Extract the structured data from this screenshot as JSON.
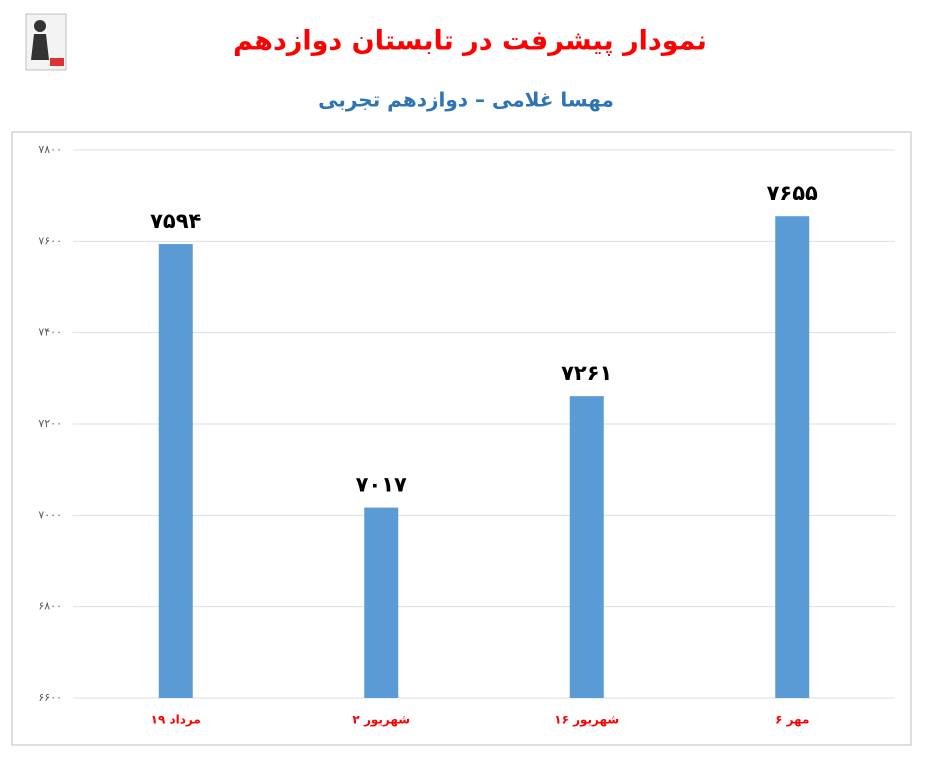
{
  "chart_data": {
    "type": "bar",
    "title": "نمودار پیشرفت در تابستان دوازدهم",
    "subtitle": "مهسا غلامی – دوازدهم تجربی",
    "categories": [
      "۱۹ مرداد",
      "۲ شهریور",
      "۱۶ شهریور",
      "۶ مهر"
    ],
    "values": [
      7594,
      7017,
      7261,
      7655
    ],
    "value_labels": [
      "۷۵۹۴",
      "۷۰۱۷",
      "۷۲۶۱",
      "۷۶۵۵"
    ],
    "color": "#5b9bd5",
    "ylim": [
      6600,
      7800
    ],
    "yticks": [
      {
        "value": 6600,
        "label": "۶۶۰۰"
      },
      {
        "value": 6800,
        "label": "۶۸۰۰"
      },
      {
        "value": 7000,
        "label": "۷۰۰۰"
      },
      {
        "value": 7200,
        "label": "۷۲۰۰"
      },
      {
        "value": 7400,
        "label": "۷۴۰۰"
      },
      {
        "value": 7600,
        "label": "۷۶۰۰"
      },
      {
        "value": 7800,
        "label": "۷۸۰۰"
      }
    ],
    "grid": true
  }
}
